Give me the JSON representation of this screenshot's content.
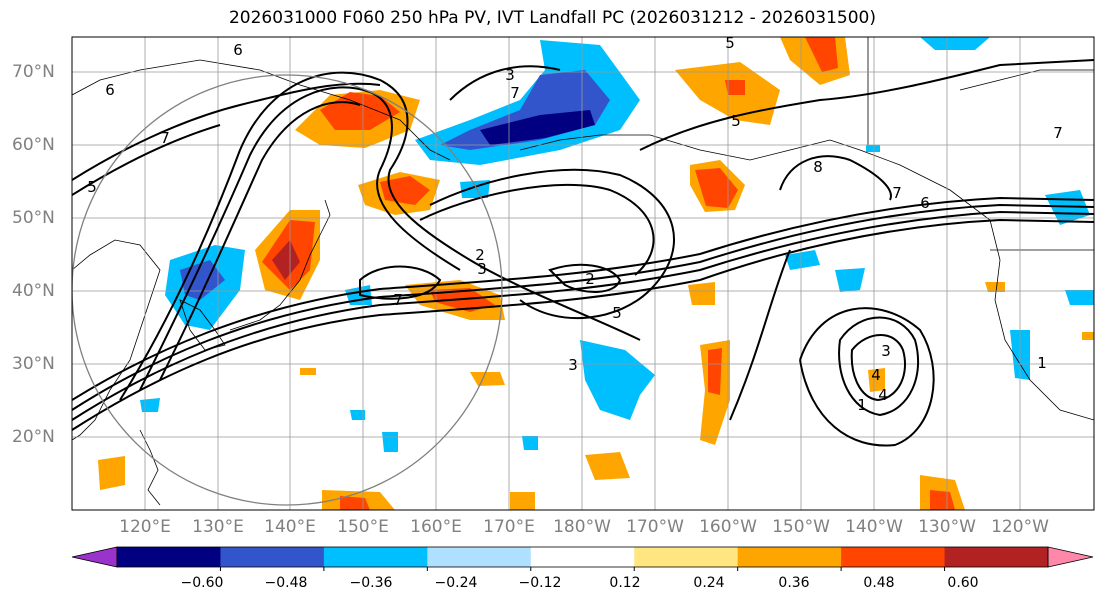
{
  "title": "2026031000 F060 250 hPa PV, IVT Landfall PC (2026031212 - 2026031500)",
  "lat_labels": [
    "70°N",
    "60°N",
    "50°N",
    "40°N",
    "30°N",
    "20°N"
  ],
  "lon_labels": [
    "120°E",
    "130°E",
    "140°E",
    "150°E",
    "160°E",
    "170°E",
    "180°W",
    "170°W",
    "160°W",
    "150°W",
    "140°W",
    "130°W",
    "120°W"
  ],
  "contour_labels": [
    "6",
    "6",
    "7",
    "5",
    "3",
    "5",
    "2",
    "7",
    "2",
    "3",
    "5",
    "3",
    "7",
    "8",
    "7",
    "6",
    "5",
    "4",
    "3",
    "4",
    "1",
    "7",
    "1"
  ],
  "colorbar": {
    "ticks": [
      "−0.60",
      "−0.48",
      "−0.36",
      "−0.24",
      "−0.12",
      "0.12",
      "0.24",
      "0.36",
      "0.48",
      "0.60"
    ],
    "colors": [
      "#9933cc",
      "#000080",
      "#3355cc",
      "#00bfff",
      "#b0e0ff",
      "#ffffff",
      "#ffe680",
      "#ffa500",
      "#ff4500",
      "#b22222",
      "#ff88aa"
    ]
  },
  "fill_colors": {
    "neg_light": "#00bfff",
    "neg_mid": "#3355cc",
    "neg_dark": "#000080",
    "pos_light": "#ffa500",
    "pos_mid": "#ff4500",
    "pos_dark": "#b22222",
    "pos_pale": "#ffe680"
  }
}
